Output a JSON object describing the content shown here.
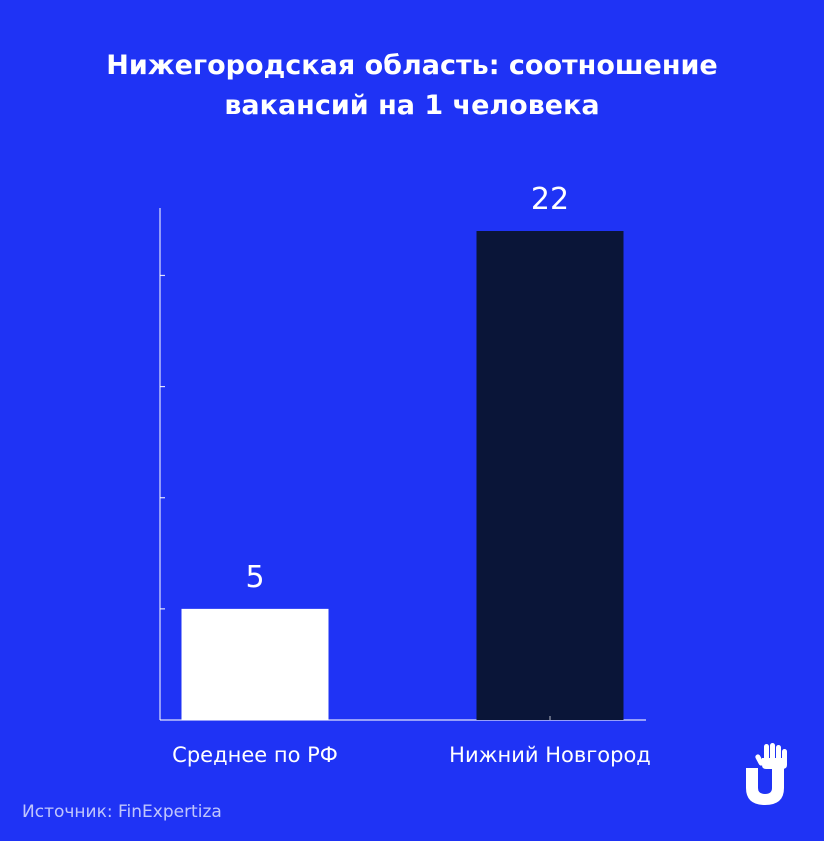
{
  "colors": {
    "background": "#1F33F5",
    "bar_regular": "#FFFFFF",
    "bar_highlight": "#0A1538",
    "axis": "#FFFFFF",
    "text": "#FFFFFF"
  },
  "header": {
    "title_line1": "Нижегородская область: соотношение",
    "title_line2": "вакансий на 1 человека"
  },
  "footer": {
    "source": "Источник: FinExpertiza"
  },
  "logo": {
    "icon": "hand-u-logo-icon"
  },
  "chart_data": {
    "type": "bar",
    "title": "Нижегородская область: соотношение вакансий на 1 человека",
    "categories": [
      "Среднее по РФ",
      "Нижний Новгород"
    ],
    "values": [
      5,
      22
    ],
    "data_labels": [
      "5",
      "22"
    ],
    "ylim": [
      0,
      23
    ],
    "y_ticks": [
      5,
      10,
      15,
      20
    ],
    "y_tick_labels_shown": false,
    "grid": false,
    "legend": "none",
    "xlabel": "",
    "ylabel": ""
  }
}
